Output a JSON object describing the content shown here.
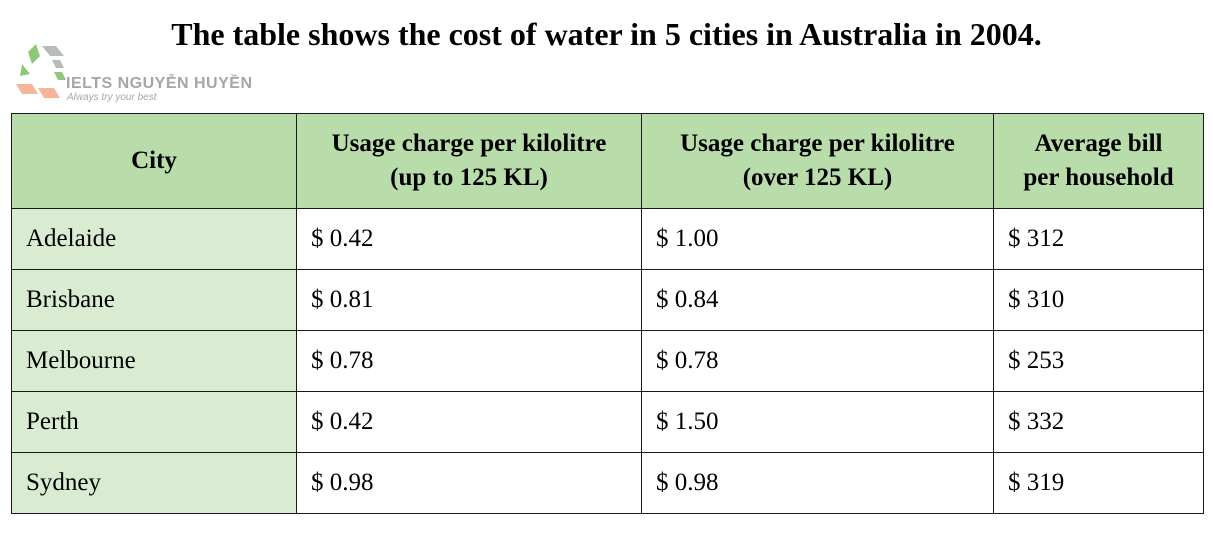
{
  "title": "The table shows the cost of water in 5 cities in Australia in 2004.",
  "logo": {
    "name": "IELTS NGUYỄN HUYỀN",
    "tagline": "Always try your best",
    "colors": {
      "text": "#a3a8a4",
      "green": "#8fc67a",
      "grey": "#b8bcb9",
      "peach": "#f4b59a"
    }
  },
  "colors": {
    "header_bg": "#b9dcab",
    "city_bg": "#d9ecd1",
    "border": "#1a1a1a"
  },
  "chart_data": {
    "type": "table",
    "title": "The table shows the cost of water in 5 cities in Australia in 2004.",
    "columns": [
      "City",
      "Usage charge per kilolitre (up to 125 KL)",
      "Usage charge per kilolitre (over 125 KL)",
      "Average bill per household"
    ],
    "header": {
      "city": "City",
      "up_to_line1": "Usage charge per kilolitre",
      "up_to_line2": "(up to 125 KL)",
      "over_line1": "Usage charge per kilolitre",
      "over_line2": "(over 125 KL)",
      "bill_line1": "Average bill",
      "bill_line2": "per household"
    },
    "rows": [
      {
        "city": "Adelaide",
        "up_to_125": "$ 0.42",
        "over_125": "$ 1.00",
        "avg_bill": "$ 312"
      },
      {
        "city": "Brisbane",
        "up_to_125": "$ 0.81",
        "over_125": "$ 0.84",
        "avg_bill": "$ 310"
      },
      {
        "city": "Melbourne",
        "up_to_125": "$ 0.78",
        "over_125": "$ 0.78",
        "avg_bill": "$ 253"
      },
      {
        "city": "Perth",
        "up_to_125": "$ 0.42",
        "over_125": "$ 1.50",
        "avg_bill": "$ 332"
      },
      {
        "city": "Sydney",
        "up_to_125": "$ 0.98",
        "over_125": "$ 0.98",
        "avg_bill": "$ 319"
      }
    ]
  }
}
